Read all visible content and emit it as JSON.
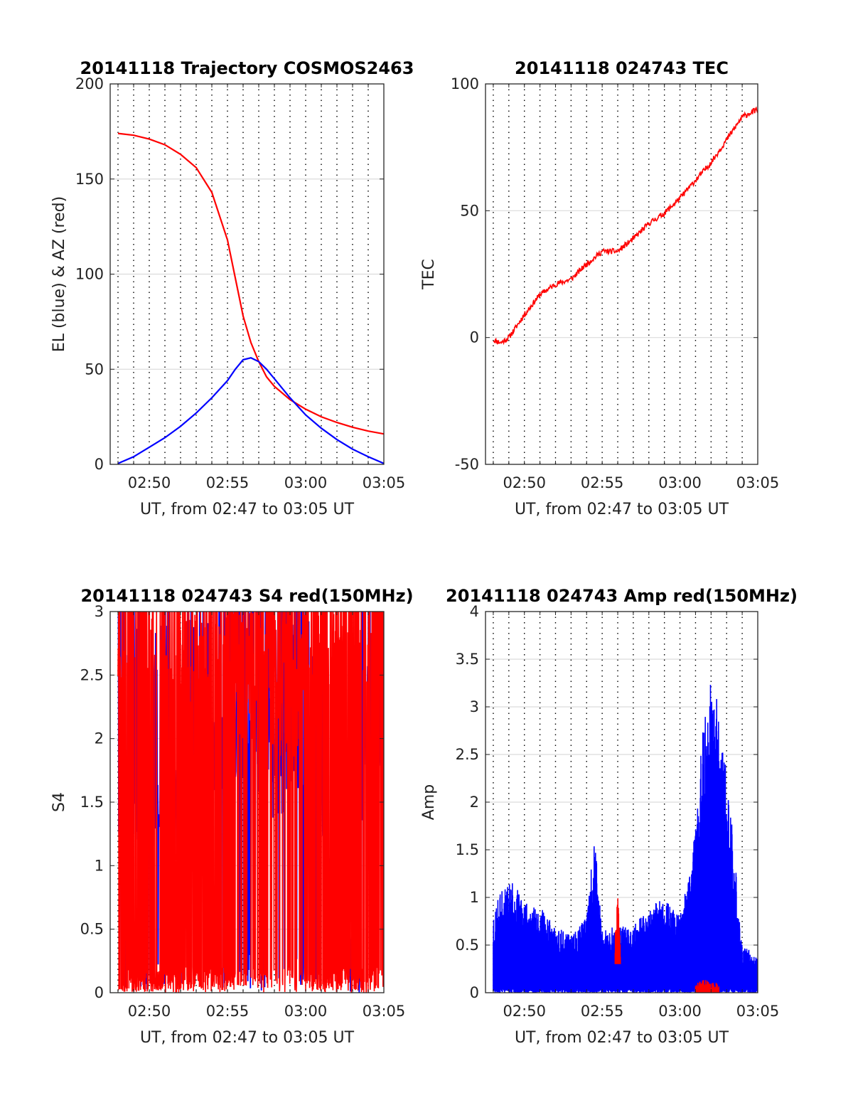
{
  "figure": {
    "background": "#ffffff",
    "axis_color": "#262626",
    "grid_color": "#dcdcdc",
    "red": "#ff0000",
    "blue": "#0000ff"
  },
  "chart_data": [
    {
      "id": "trajectory",
      "type": "line",
      "title": "20141118 Trajectory COSMOS2463",
      "xlabel": "UT, from 02:47 to 03:05 UT",
      "ylabel": "EL (blue) & AZ (red)",
      "xlim": [
        "02:47:30",
        "03:05:00"
      ],
      "ylim": [
        0,
        200
      ],
      "xticks": [
        "02:50",
        "02:55",
        "03:00",
        "03:05"
      ],
      "yticks": [
        0,
        50,
        100,
        150,
        200
      ],
      "minute_lines": "dotted vertical line every minute",
      "grid": "horizontal",
      "series": [
        {
          "color": "#ff0000",
          "x": [
            "02:48",
            "02:49",
            "02:50",
            "02:51",
            "02:52",
            "02:53",
            "02:54",
            "02:55",
            "02:55:30",
            "02:56",
            "02:56:30",
            "02:57",
            "02:57:30",
            "02:58",
            "02:59",
            "03:00",
            "03:01",
            "03:02",
            "03:03",
            "03:04",
            "03:05"
          ],
          "values": [
            174,
            173,
            171,
            168,
            163,
            156,
            143,
            118,
            98,
            78,
            64,
            54,
            46,
            41,
            34,
            29,
            25,
            22,
            19.5,
            17.5,
            16
          ]
        },
        {
          "color": "#0000ff",
          "x": [
            "02:48",
            "02:49",
            "02:50",
            "02:51",
            "02:52",
            "02:53",
            "02:54",
            "02:55",
            "02:55:30",
            "02:56",
            "02:56:30",
            "02:57",
            "02:57:30",
            "02:58",
            "02:59",
            "03:00",
            "03:01",
            "03:02",
            "03:03",
            "03:04",
            "03:05"
          ],
          "values": [
            0.5,
            4,
            9,
            14,
            20,
            27,
            35,
            44,
            50,
            55,
            56,
            54,
            50,
            45,
            35,
            26,
            19,
            13,
            8,
            4,
            0.5
          ]
        }
      ]
    },
    {
      "id": "tec",
      "type": "line",
      "title": "20141118 024743 TEC",
      "xlabel": "UT, from 02:47 to 03:05 UT",
      "ylabel": "TEC",
      "xlim": [
        "02:47:30",
        "03:05:00"
      ],
      "ylim": [
        -50,
        100
      ],
      "xticks": [
        "02:50",
        "02:55",
        "03:00",
        "03:05"
      ],
      "yticks": [
        -50,
        0,
        50,
        100
      ],
      "minute_lines": "dotted vertical line every minute",
      "grid": "horizontal",
      "series": [
        {
          "color": "#ff0000",
          "x": [
            "02:48",
            "02:48:30",
            "02:49",
            "02:50",
            "02:51",
            "02:52",
            "02:53",
            "02:54",
            "02:55",
            "02:56",
            "02:57",
            "02:58",
            "02:59",
            "03:00",
            "03:01",
            "03:02",
            "03:03",
            "03:04",
            "03:05"
          ],
          "values": [
            -1,
            -2,
            0,
            9,
            17,
            21,
            23,
            29,
            34,
            34,
            39,
            45,
            49,
            55,
            62,
            69,
            78,
            87,
            90
          ]
        }
      ]
    },
    {
      "id": "s4",
      "type": "line",
      "title": "20141118 024743 S4 red(150MHz)",
      "xlabel": "UT, from 02:47 to 03:05 UT",
      "ylabel": "S4",
      "xlim": [
        "02:47:30",
        "03:05:00"
      ],
      "ylim": [
        0,
        3
      ],
      "xticks": [
        "02:50",
        "02:55",
        "03:00",
        "03:05"
      ],
      "yticks": [
        0,
        0.5,
        1,
        1.5,
        2,
        2.5,
        3
      ],
      "minute_lines": "dotted vertical line every minute",
      "grid": "horizontal",
      "note": "Dense noisy traces, red mostly saturating between 0 and 3; blue base level shown below",
      "series": [
        {
          "color": "#0000ff",
          "x": [
            "02:48",
            "02:49",
            "02:50",
            "02:51",
            "02:52",
            "02:53",
            "02:54",
            "02:55",
            "02:56",
            "02:57",
            "02:58",
            "02:59",
            "03:00",
            "03:01",
            "03:02",
            "03:03",
            "03:04",
            "03:05"
          ],
          "values": [
            1.4,
            1.4,
            1.5,
            1.3,
            1.6,
            1.8,
            2.0,
            2.1,
            2.2,
            2.0,
            1.8,
            1.9,
            1.5,
            1.5,
            0.4,
            0.4,
            2.5,
            2.2
          ]
        },
        {
          "color": "#ff0000",
          "x": [
            "02:48",
            "02:49",
            "02:50",
            "02:51",
            "02:52",
            "02:53",
            "02:54",
            "02:55",
            "02:56",
            "02:57",
            "02:58",
            "02:59",
            "03:00",
            "03:01",
            "03:02",
            "03:03",
            "03:04",
            "03:05"
          ],
          "values": [
            3,
            3,
            3,
            3,
            2.8,
            2.8,
            3,
            3,
            3,
            3,
            3,
            3,
            3,
            3,
            3,
            3,
            3,
            3
          ]
        }
      ]
    },
    {
      "id": "amp",
      "type": "line",
      "title": "20141118 024743 Amp red(150MHz)",
      "xlabel": "UT, from 02:47 to 03:05 UT",
      "ylabel": "Amp",
      "xlim": [
        "02:47:30",
        "03:05:00"
      ],
      "ylim": [
        0,
        4
      ],
      "xticks": [
        "02:50",
        "02:55",
        "03:00",
        "03:05"
      ],
      "yticks": [
        0,
        0.5,
        1,
        1.5,
        2,
        2.5,
        3,
        3.5,
        4
      ],
      "minute_lines": "dotted vertical line every minute",
      "grid": "horizontal",
      "note": "Noisy blue trace covering 0 to its envelope; small red traces near 02:56 and 03:01-03:02",
      "series": [
        {
          "color": "#0000ff",
          "x": [
            "02:48",
            "02:49",
            "02:50",
            "02:51",
            "02:52",
            "02:53",
            "02:54",
            "02:54:30",
            "02:55",
            "02:56",
            "02:57",
            "02:58",
            "02:59",
            "03:00",
            "03:01",
            "03:01:30",
            "03:02",
            "03:02:30",
            "03:03",
            "03:04",
            "03:05"
          ],
          "values": [
            0.9,
            1.2,
            1.0,
            0.9,
            0.7,
            0.6,
            0.8,
            1.65,
            0.7,
            0.7,
            0.7,
            0.9,
            1.0,
            0.8,
            1.7,
            3.0,
            3.4,
            3.0,
            2.4,
            0.5,
            0.4
          ]
        },
        {
          "color": "#ff0000",
          "x": [
            "02:55:50",
            "02:56:00",
            "02:56:10",
            "03:01:00",
            "03:01:30",
            "03:02:00",
            "03:02:30"
          ],
          "values": [
            0.6,
            1.05,
            0.5,
            0.1,
            0.15,
            0.1,
            0.12
          ]
        }
      ]
    }
  ]
}
